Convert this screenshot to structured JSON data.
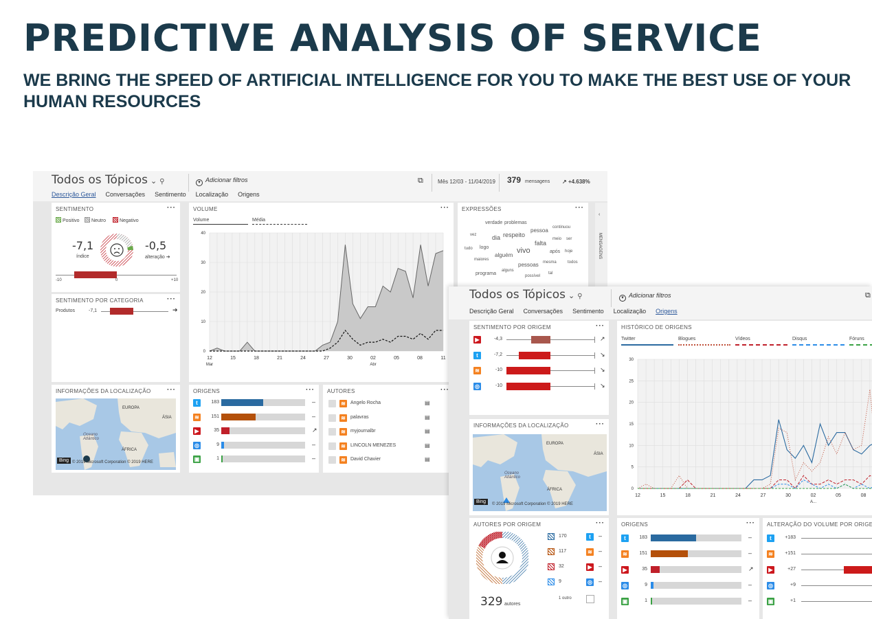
{
  "slide": {
    "title": "PREDICTIVE ANALYSIS OF SERVICE",
    "subtitle": "WE BRING THE SPEED OF ARTIFICIAL INTELLIGENCE FOR YOU TO MAKE THE BEST USE OF YOUR HUMAN RESOURCES"
  },
  "dash1": {
    "topic": "Todos os Tópicos",
    "add_filters": "Adicionar filtros",
    "date_range": "Mês 12/03 - 11/04/2019",
    "messages_count": "379",
    "messages_label": "mensagens",
    "change": "+4.638%",
    "nav": [
      "Descrição Geral",
      "Conversações",
      "Sentimento",
      "Localização",
      "Origens"
    ],
    "active_nav": "Descrição Geral",
    "side_label": "MENSAGENS",
    "sentiment": {
      "title": "SENTIMENTO",
      "legend": [
        "Positivo",
        "Neutro",
        "Negativo"
      ],
      "index_value": "-7,1",
      "index_label": "índice",
      "change_value": "-0,5",
      "change_label": "alteração",
      "scale_min": "-10",
      "scale_mid": "0",
      "scale_max": "+10",
      "index_level": -7.1
    },
    "sent_cat": {
      "title": "SENTIMENTO POR CATEGORIA",
      "row_label": "Produtos",
      "row_value": "-7,1"
    },
    "volume": {
      "title": "VOLUME",
      "legend_volume": "Volume",
      "legend_media": "Média"
    },
    "expressions": {
      "title": "EXPRESSÕES",
      "words": [
        "verdade",
        "problemas",
        "pessoa",
        "continuou",
        "vez",
        "dia",
        "respeito",
        "meio",
        "ser",
        "tudo",
        "logo",
        "falta",
        "vivo",
        "após",
        "hoje",
        "alguém",
        "maiores",
        "pessoas",
        "mesma",
        "todos",
        "programa",
        "alguns",
        "possível",
        "tal"
      ]
    },
    "location": {
      "title": "INFORMAÇÕES DA LOCALIZAÇÃO",
      "labels": [
        "EUROPA",
        "ÁSIA",
        "Oceano Atlântico",
        "ÁFRICA"
      ],
      "bing": "Bing",
      "copyright": "© 2019 Microsoft Corporation © 2019 HERE"
    },
    "origins": {
      "title": "ORIGENS",
      "rows": [
        {
          "icon": "twitter-icon",
          "value": "183",
          "pct": 0.5,
          "color": "#2a6aa0",
          "trend": "–"
        },
        {
          "icon": "rss-icon",
          "value": "151",
          "pct": 0.41,
          "color": "#b4500a",
          "trend": "–"
        },
        {
          "icon": "youtube-icon",
          "value": "35",
          "pct": 0.1,
          "color": "#c0202a",
          "trend": "↗"
        },
        {
          "icon": "blog-icon",
          "value": "9",
          "pct": 0.03,
          "color": "#2b8ce8",
          "trend": "–"
        },
        {
          "icon": "forum-icon",
          "value": "1",
          "pct": 0.005,
          "color": "#3aa144",
          "trend": "–"
        }
      ]
    },
    "authors": {
      "title": "AUTORES",
      "rows": [
        "Angelo Rocha",
        "palavras",
        "myjournalbr",
        "LINCOLN MENEZES",
        "David Chavier"
      ]
    }
  },
  "dash2": {
    "topic": "Todos os Tópicos",
    "add_filters": "Adicionar filtros",
    "nav": [
      "Descrição Geral",
      "Conversações",
      "Sentimento",
      "Localização",
      "Origens"
    ],
    "active_nav": "Origens",
    "sent_origin": {
      "title": "SENTIMENTO POR ORIGEM",
      "rows": [
        {
          "icon": "youtube-icon",
          "value": "-4,3",
          "level": -4.3,
          "trend": "↗"
        },
        {
          "icon": "twitter-icon",
          "value": "-7,2",
          "level": -7.2,
          "trend": "↘"
        },
        {
          "icon": "rss-icon",
          "value": "-10",
          "level": -10,
          "trend": "↘"
        },
        {
          "icon": "blog-icon",
          "value": "-10",
          "level": -10,
          "trend": "↘"
        }
      ]
    },
    "history": {
      "title": "HISTÓRICO DE ORIGENS",
      "legend": [
        "Twitter",
        "Blogues",
        "Vídeos",
        "Disqus",
        "Fóruns"
      ]
    },
    "location": {
      "title": "INFORMAÇÕES DA LOCALIZAÇÃO",
      "labels": [
        "EUROPA",
        "ÁSIA",
        "Oceano Atlântico",
        "ÁFRICA"
      ],
      "bing": "Bing",
      "copyright": "© 2019 Microsoft Corporation © 2019 HERE"
    },
    "authors_origin": {
      "title": "AUTORES POR ORIGEM",
      "count": "329",
      "count_label": "autores",
      "rows": [
        {
          "value": "170",
          "icon": "twitter-icon"
        },
        {
          "value": "117",
          "icon": "rss-icon"
        },
        {
          "value": "32",
          "icon": "youtube-icon"
        },
        {
          "value": "9",
          "icon": "blog-icon"
        }
      ],
      "other": "1 outro"
    },
    "origins": {
      "title": "ORIGENS",
      "rows": [
        {
          "icon": "twitter-icon",
          "value": "183",
          "pct": 0.5,
          "color": "#2a6aa0",
          "trend": "–"
        },
        {
          "icon": "rss-icon",
          "value": "151",
          "pct": 0.41,
          "color": "#b4500a",
          "trend": "–"
        },
        {
          "icon": "youtube-icon",
          "value": "35",
          "pct": 0.1,
          "color": "#c0202a",
          "trend": "↗"
        },
        {
          "icon": "blog-icon",
          "value": "9",
          "pct": 0.03,
          "color": "#2b8ce8",
          "trend": "–"
        },
        {
          "icon": "forum-icon",
          "value": "1",
          "pct": 0.005,
          "color": "#3aa144",
          "trend": "–"
        }
      ]
    },
    "vol_change": {
      "title": "ALTERAÇÃO DO VOLUME POR ORIGEM",
      "rows": [
        {
          "icon": "twitter-icon",
          "value": "+183"
        },
        {
          "icon": "rss-icon",
          "value": "+151"
        },
        {
          "icon": "youtube-icon",
          "value": "+27"
        },
        {
          "icon": "blog-icon",
          "value": "+9"
        },
        {
          "icon": "forum-icon",
          "value": "+1"
        }
      ]
    }
  },
  "chart_data": [
    {
      "type": "area",
      "title": "VOLUME",
      "x_ticks": [
        "12",
        "15",
        "18",
        "21",
        "24",
        "27",
        "30",
        "02",
        "05",
        "08",
        "11"
      ],
      "x_month_labels": [
        "Mar",
        "Abr"
      ],
      "y_ticks": [
        "0",
        "10",
        "20",
        "30",
        "40"
      ],
      "ylim": [
        0,
        40
      ],
      "series": [
        {
          "name": "Volume",
          "values": [
            0,
            1,
            0,
            0,
            0,
            3,
            0,
            0,
            0,
            0,
            0,
            0,
            0,
            0,
            0,
            2,
            3,
            10,
            36,
            16,
            11,
            15,
            15,
            22,
            20,
            28,
            27,
            18,
            36,
            22,
            33,
            34
          ]
        },
        {
          "name": "Média",
          "values": [
            0,
            0,
            0,
            0,
            0,
            0,
            0,
            0,
            0,
            0,
            0,
            0,
            0,
            0,
            0,
            0,
            1,
            3,
            7,
            4,
            2,
            3,
            3,
            4,
            3,
            5,
            5,
            4,
            6,
            4,
            7,
            7
          ]
        }
      ]
    },
    {
      "type": "line",
      "title": "HISTÓRICO DE ORIGENS",
      "x_ticks": [
        "12",
        "15",
        "18",
        "21",
        "24",
        "27",
        "30",
        "02",
        "05",
        "08"
      ],
      "x_month_labels": [
        "A..."
      ],
      "y_ticks": [
        "0",
        "5",
        "10",
        "15",
        "20",
        "25",
        "30"
      ],
      "ylim": [
        0,
        30
      ],
      "series": [
        {
          "name": "Twitter",
          "values": [
            0,
            0,
            0,
            0,
            0,
            0,
            0,
            0,
            0,
            0,
            0,
            0,
            0,
            0,
            2,
            2,
            3,
            16,
            9,
            7,
            10,
            6,
            15,
            10,
            13,
            13,
            9,
            8,
            10,
            11
          ]
        },
        {
          "name": "Blogues",
          "values": [
            0,
            1,
            0,
            0,
            0,
            3,
            0,
            0,
            0,
            0,
            0,
            0,
            0,
            0,
            0,
            0,
            1,
            14,
            13,
            2,
            6,
            4,
            6,
            12,
            8,
            13,
            9,
            10,
            23,
            3
          ]
        },
        {
          "name": "Vídeos",
          "values": [
            0,
            0,
            0,
            0,
            0,
            0,
            2,
            0,
            0,
            0,
            0,
            0,
            0,
            0,
            0,
            0,
            0,
            2,
            2,
            0,
            3,
            1,
            1,
            2,
            1,
            2,
            2,
            1,
            3,
            2
          ]
        },
        {
          "name": "Disqus",
          "values": [
            0,
            0,
            0,
            0,
            0,
            0,
            0,
            0,
            0,
            0,
            0,
            0,
            0,
            0,
            0,
            0,
            0,
            1,
            1,
            0,
            2,
            1,
            0,
            1,
            0,
            1,
            0,
            1,
            0,
            1
          ]
        },
        {
          "name": "Fóruns",
          "values": [
            0,
            0,
            0,
            0,
            0,
            0,
            0,
            0,
            0,
            0,
            0,
            0,
            0,
            0,
            0,
            0,
            0,
            0,
            0,
            0,
            0,
            0,
            0,
            0,
            0,
            1,
            0,
            0,
            0,
            0
          ]
        }
      ]
    }
  ]
}
